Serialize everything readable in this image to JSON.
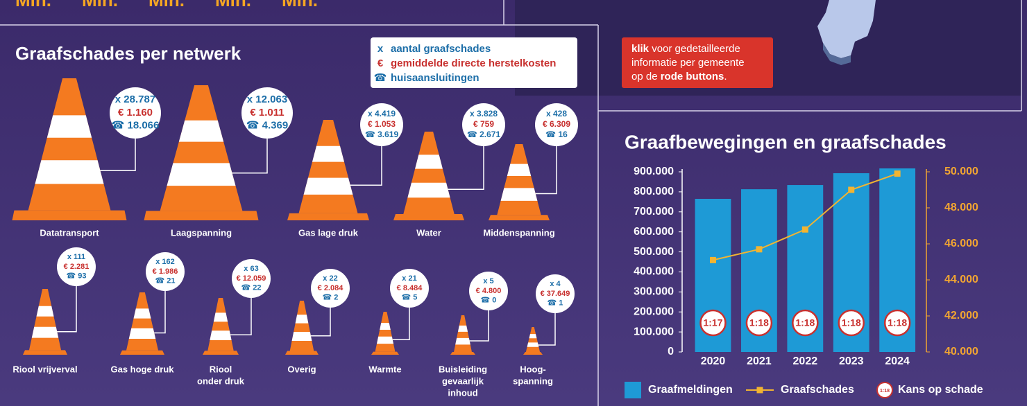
{
  "top_units": [
    "Mln.",
    "Mln.",
    "Mln.",
    "Mln.",
    "Mln."
  ],
  "info": {
    "lines": [
      [
        {
          "text": "klik",
          "bold": true
        },
        {
          "text": " voor gedetailleerde",
          "bold": false
        }
      ],
      [
        {
          "text": "informatie per gemeente",
          "bold": false
        }
      ],
      [
        {
          "text": "op de ",
          "bold": false
        },
        {
          "text": "rode buttons",
          "bold": true
        },
        {
          "text": ".",
          "bold": false
        }
      ]
    ]
  },
  "networks": {
    "title": "Graafschades per netwerk",
    "legend": [
      {
        "symbol": "x",
        "text": "aantal graafschades",
        "color": "#1c6ea8"
      },
      {
        "symbol": "€",
        "text": "gemiddelde directe herstelkosten",
        "color": "#c8312f"
      },
      {
        "symbol": "☎",
        "text": "huisaansluitingen",
        "color": "#1c6ea8"
      }
    ],
    "items": [
      {
        "name": [
          "Datatransport"
        ],
        "count": "x 28.787",
        "cost": "€ 1.160",
        "connections": "☎ 18.066"
      },
      {
        "name": [
          "Laagspanning"
        ],
        "count": "x 12.063",
        "cost": "€ 1.011",
        "connections": "☎ 4.369"
      },
      {
        "name": [
          "Gas lage druk"
        ],
        "count": "x 4.419",
        "cost": "€ 1.053",
        "connections": "☎ 3.619"
      },
      {
        "name": [
          "Water"
        ],
        "count": "x 3.828",
        "cost": "€ 759",
        "connections": "☎ 2.671"
      },
      {
        "name": [
          "Middenspanning"
        ],
        "count": "x 428",
        "cost": "€ 6.309",
        "connections": "☎ 16"
      },
      {
        "name": [
          "Riool vrijverval"
        ],
        "count": "x 111",
        "cost": "€ 2.281",
        "connections": "☎ 93"
      },
      {
        "name": [
          "Gas hoge druk"
        ],
        "count": "x 162",
        "cost": "€ 1.986",
        "connections": "☎ 21"
      },
      {
        "name": [
          "Riool",
          "onder druk"
        ],
        "count": "x 63",
        "cost": "€ 12.059",
        "connections": "☎ 22"
      },
      {
        "name": [
          "Overig"
        ],
        "count": "x 22",
        "cost": "€ 2.084",
        "connections": "☎ 2"
      },
      {
        "name": [
          "Warmte"
        ],
        "count": "x 21",
        "cost": "€ 8.484",
        "connections": "☎ 5"
      },
      {
        "name": [
          "Buisleiding",
          "gevaarlijk",
          "inhoud"
        ],
        "count": "x 5",
        "cost": "€ 4.800",
        "connections": "☎ 0"
      },
      {
        "name": [
          "Hoog-",
          "spanning"
        ],
        "count": "x 4",
        "cost": "€ 37.649",
        "connections": "☎ 1"
      }
    ]
  },
  "chart_data": {
    "type": "bar-line",
    "title": "Graafbewegingen en graafschades",
    "categories": [
      "2020",
      "2021",
      "2022",
      "2023",
      "2024"
    ],
    "series": [
      {
        "name": "Graafmeldingen",
        "type": "bar",
        "color": "#1e9ad6",
        "values": [
          765000,
          813000,
          834000,
          893000,
          917000
        ]
      },
      {
        "name": "Graafschades",
        "type": "line",
        "axis": "y2",
        "color": "#f2b431",
        "values": [
          45100,
          45700,
          46800,
          49000,
          49900
        ]
      }
    ],
    "risk": {
      "name": "Kans op schade",
      "values": [
        "1:17",
        "1:18",
        "1:18",
        "1:18",
        "1:18"
      ],
      "legend_icon": "1:18"
    },
    "ylim": [
      0,
      900000
    ],
    "yticks": [
      0,
      {
        "value": 100000,
        "label": "100.000"
      },
      {
        "value": 200000,
        "label": "200.000"
      },
      {
        "value": 300000,
        "label": "300.000"
      },
      {
        "value": 400000,
        "label": "400.000"
      },
      {
        "value": 500000,
        "label": "500.000"
      },
      {
        "value": 600000,
        "label": "600.000"
      },
      {
        "value": 700000,
        "label": "700.000"
      },
      {
        "value": 800000,
        "label": "800.000"
      },
      {
        "value": 900000,
        "label": "900.000"
      }
    ],
    "y2lim": [
      40000,
      50000
    ],
    "y2ticks": [
      {
        "value": 40000,
        "label": "40.000"
      },
      {
        "value": 42000,
        "label": "42.000"
      },
      {
        "value": 44000,
        "label": "44.000"
      },
      {
        "value": 46000,
        "label": "46.000"
      },
      {
        "value": 48000,
        "label": "48.000"
      },
      {
        "value": 50000,
        "label": "50.000"
      }
    ]
  }
}
